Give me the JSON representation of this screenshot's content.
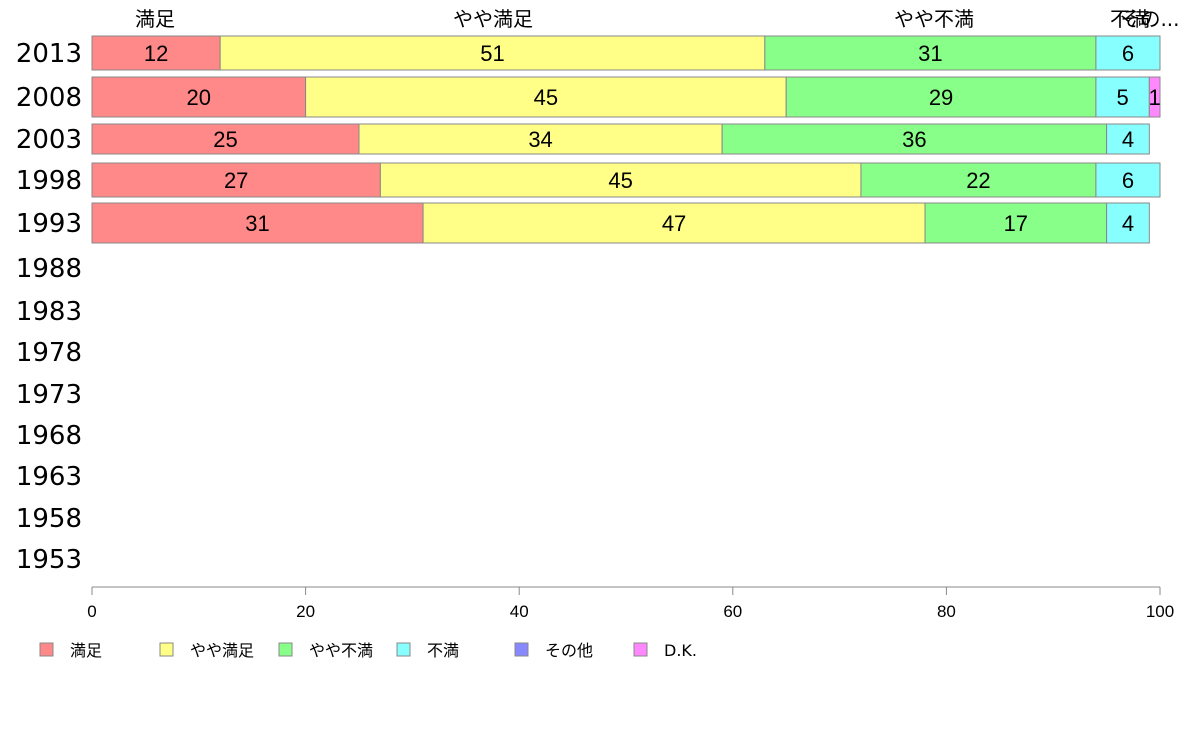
{
  "chart_data": {
    "type": "bar",
    "orientation": "horizontal",
    "stacked": true,
    "categories": [
      "2013",
      "2008",
      "2003",
      "1998",
      "1993",
      "1988",
      "1983",
      "1978",
      "1973",
      "1968",
      "1963",
      "1958",
      "1953"
    ],
    "series": [
      {
        "name": "満足",
        "color": "#ff8888",
        "values": [
          12,
          20,
          25,
          27,
          31,
          null,
          null,
          null,
          null,
          null,
          null,
          null,
          null
        ]
      },
      {
        "name": "やや満足",
        "color": "#ffff88",
        "values": [
          51,
          45,
          34,
          45,
          47,
          null,
          null,
          null,
          null,
          null,
          null,
          null,
          null
        ]
      },
      {
        "name": "やや不満",
        "color": "#88ff88",
        "values": [
          31,
          29,
          36,
          22,
          17,
          null,
          null,
          null,
          null,
          null,
          null,
          null,
          null
        ]
      },
      {
        "name": "不満",
        "color": "#88ffff",
        "values": [
          6,
          5,
          4,
          6,
          4,
          null,
          null,
          null,
          null,
          null,
          null,
          null,
          null
        ]
      },
      {
        "name": "その他",
        "color": "#8888ff",
        "values": [
          0,
          0,
          0,
          0,
          0,
          null,
          null,
          null,
          null,
          null,
          null,
          null,
          null
        ]
      },
      {
        "name": "D.K.",
        "color": "#ff88ff",
        "values": [
          0,
          1,
          0,
          0,
          0,
          null,
          null,
          null,
          null,
          null,
          null,
          null,
          null
        ]
      }
    ],
    "top_labels": [
      "満足",
      "やや満足",
      "やや不満",
      "不満",
      "その..."
    ],
    "xlim": [
      0,
      100
    ],
    "xticks": [
      0,
      20,
      40,
      60,
      80,
      100
    ],
    "grid": false,
    "legend_position": "bottom-left"
  }
}
